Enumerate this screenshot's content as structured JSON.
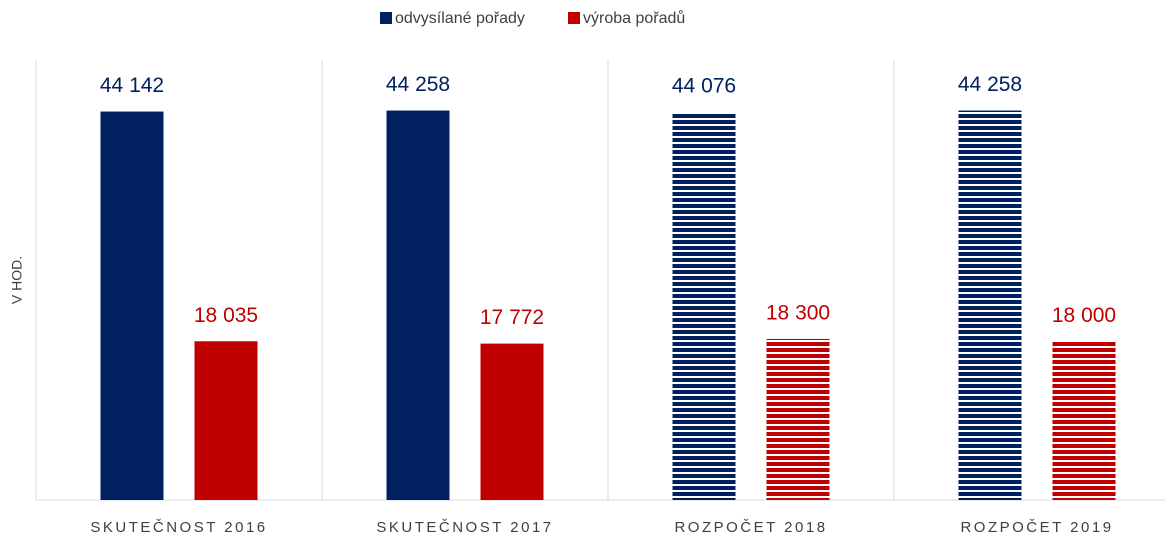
{
  "chart_data": {
    "type": "bar",
    "ylabel": "V HOD.",
    "categories": [
      "SKUTEČNOST 2016",
      "SKUTEČNOST 2017",
      "ROZPOČET 2018",
      "ROZPOČET 2019"
    ],
    "striped": [
      false,
      false,
      true,
      true
    ],
    "series": [
      {
        "name": "odvysílané pořady",
        "color": "#002060",
        "values": [
          44142,
          44258,
          44076,
          44258
        ],
        "value_labels": [
          "44 142",
          "44 258",
          "44 076",
          "44 258"
        ]
      },
      {
        "name": "výroba pořadů",
        "color": "#c00000",
        "values": [
          18035,
          17772,
          18300,
          18000
        ],
        "value_labels": [
          "18 035",
          "17 772",
          "18 300",
          "18 000"
        ]
      }
    ],
    "ylim": [
      0,
      50000
    ],
    "legend": "top"
  }
}
